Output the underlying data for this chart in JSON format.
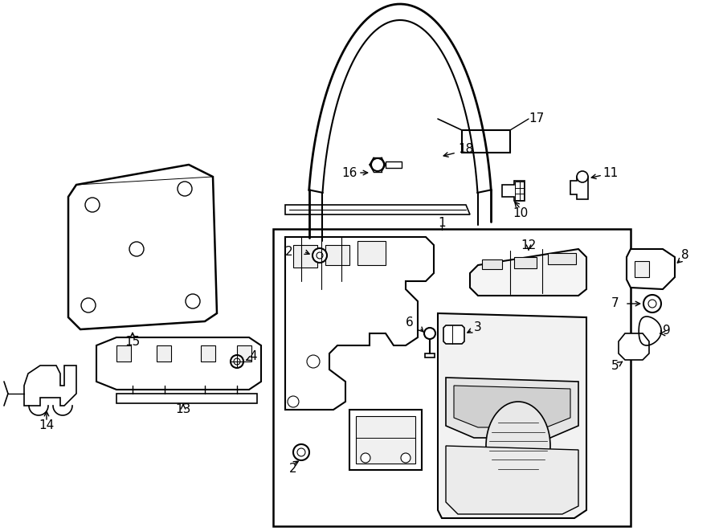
{
  "background_color": "#ffffff",
  "fig_width": 9.0,
  "fig_height": 6.61,
  "line_color": "#000000",
  "label_fontsize": 11
}
